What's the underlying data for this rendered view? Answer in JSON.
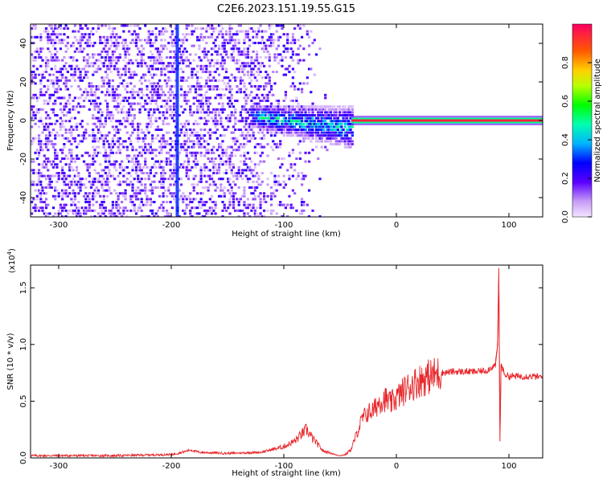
{
  "title": "C2E6.2023.151.19.55.G15",
  "colors": {
    "signal_line": "#e8282c",
    "low_amp": "#a46cf0",
    "mid_amp": "#2a2cff",
    "high_amp": "#00e0ff",
    "peak_amp": "#ff2a50"
  },
  "chart_data": [
    {
      "type": "heatmap",
      "xlabel": "Height of straight line (km)",
      "ylabel": "Frequency (Hz)",
      "xlim": [
        -325,
        130
      ],
      "ylim": [
        -50,
        50
      ],
      "x_ticks": [
        -300,
        -200,
        -100,
        0,
        100
      ],
      "y_ticks": [
        -40,
        -20,
        0,
        20,
        40
      ],
      "colorbar": {
        "label": "Normalized spectral amplitude",
        "range": [
          0.0,
          1.0
        ],
        "ticks": [
          0.0,
          0.2,
          0.4,
          0.6,
          0.8
        ],
        "tick_labels": [
          "0.0",
          "0.2",
          "0.4",
          "0.6",
          "0.8"
        ]
      },
      "features": [
        {
          "name": "noise-field",
          "x_range": [
            -325,
            -60
          ],
          "freq_range": [
            -50,
            50
          ],
          "amplitude": 0.15
        },
        {
          "name": "vertical-streak",
          "x": -195,
          "freq_range": [
            -50,
            50
          ],
          "amplitude": 0.25
        },
        {
          "name": "onset-blob",
          "x_range": [
            -130,
            -40
          ],
          "freq_range": [
            -12,
            6
          ],
          "amplitude": 0.35
        },
        {
          "name": "carrier-line",
          "x_range": [
            -40,
            130
          ],
          "freq": 0,
          "amplitude": 0.95
        }
      ]
    },
    {
      "type": "line",
      "xlabel": "Height of straight line (km)",
      "ylabel": "SNR (10 * v/v)",
      "scale_label": "(x10",
      "scale_exp": "4",
      "scale_close": ")",
      "xlim": [
        -325,
        130
      ],
      "ylim": [
        0,
        1.7
      ],
      "x_ticks": [
        -300,
        -200,
        -100,
        0,
        100
      ],
      "y_ticks": [
        0.0,
        0.5,
        1.0,
        1.5
      ],
      "y_tick_labels": [
        "0.0",
        "0.5",
        "1.0",
        "1.5"
      ],
      "series": [
        {
          "name": "SNR",
          "x": [
            -325,
            -300,
            -250,
            -200,
            -190,
            -183,
            -175,
            -150,
            -120,
            -100,
            -90,
            -80,
            -75,
            -70,
            -65,
            -60,
            -55,
            -50,
            -45,
            -40,
            -35,
            -30,
            -25,
            -20,
            -15,
            -10,
            -5,
            0,
            10,
            20,
            30,
            40,
            50,
            60,
            70,
            80,
            85,
            88,
            90,
            91,
            92,
            93,
            94,
            96,
            100,
            110,
            120,
            130
          ],
          "y": [
            0.02,
            0.02,
            0.02,
            0.03,
            0.05,
            0.07,
            0.05,
            0.04,
            0.05,
            0.1,
            0.15,
            0.25,
            0.18,
            0.12,
            0.06,
            0.05,
            0.03,
            0.02,
            0.03,
            0.08,
            0.22,
            0.35,
            0.4,
            0.42,
            0.5,
            0.52,
            0.48,
            0.53,
            0.62,
            0.68,
            0.72,
            0.75,
            0.76,
            0.76,
            0.76,
            0.77,
            0.8,
            0.82,
            1.0,
            1.67,
            0.15,
            0.82,
            0.8,
            0.74,
            0.72,
            0.72,
            0.72,
            0.71
          ]
        }
      ]
    }
  ]
}
